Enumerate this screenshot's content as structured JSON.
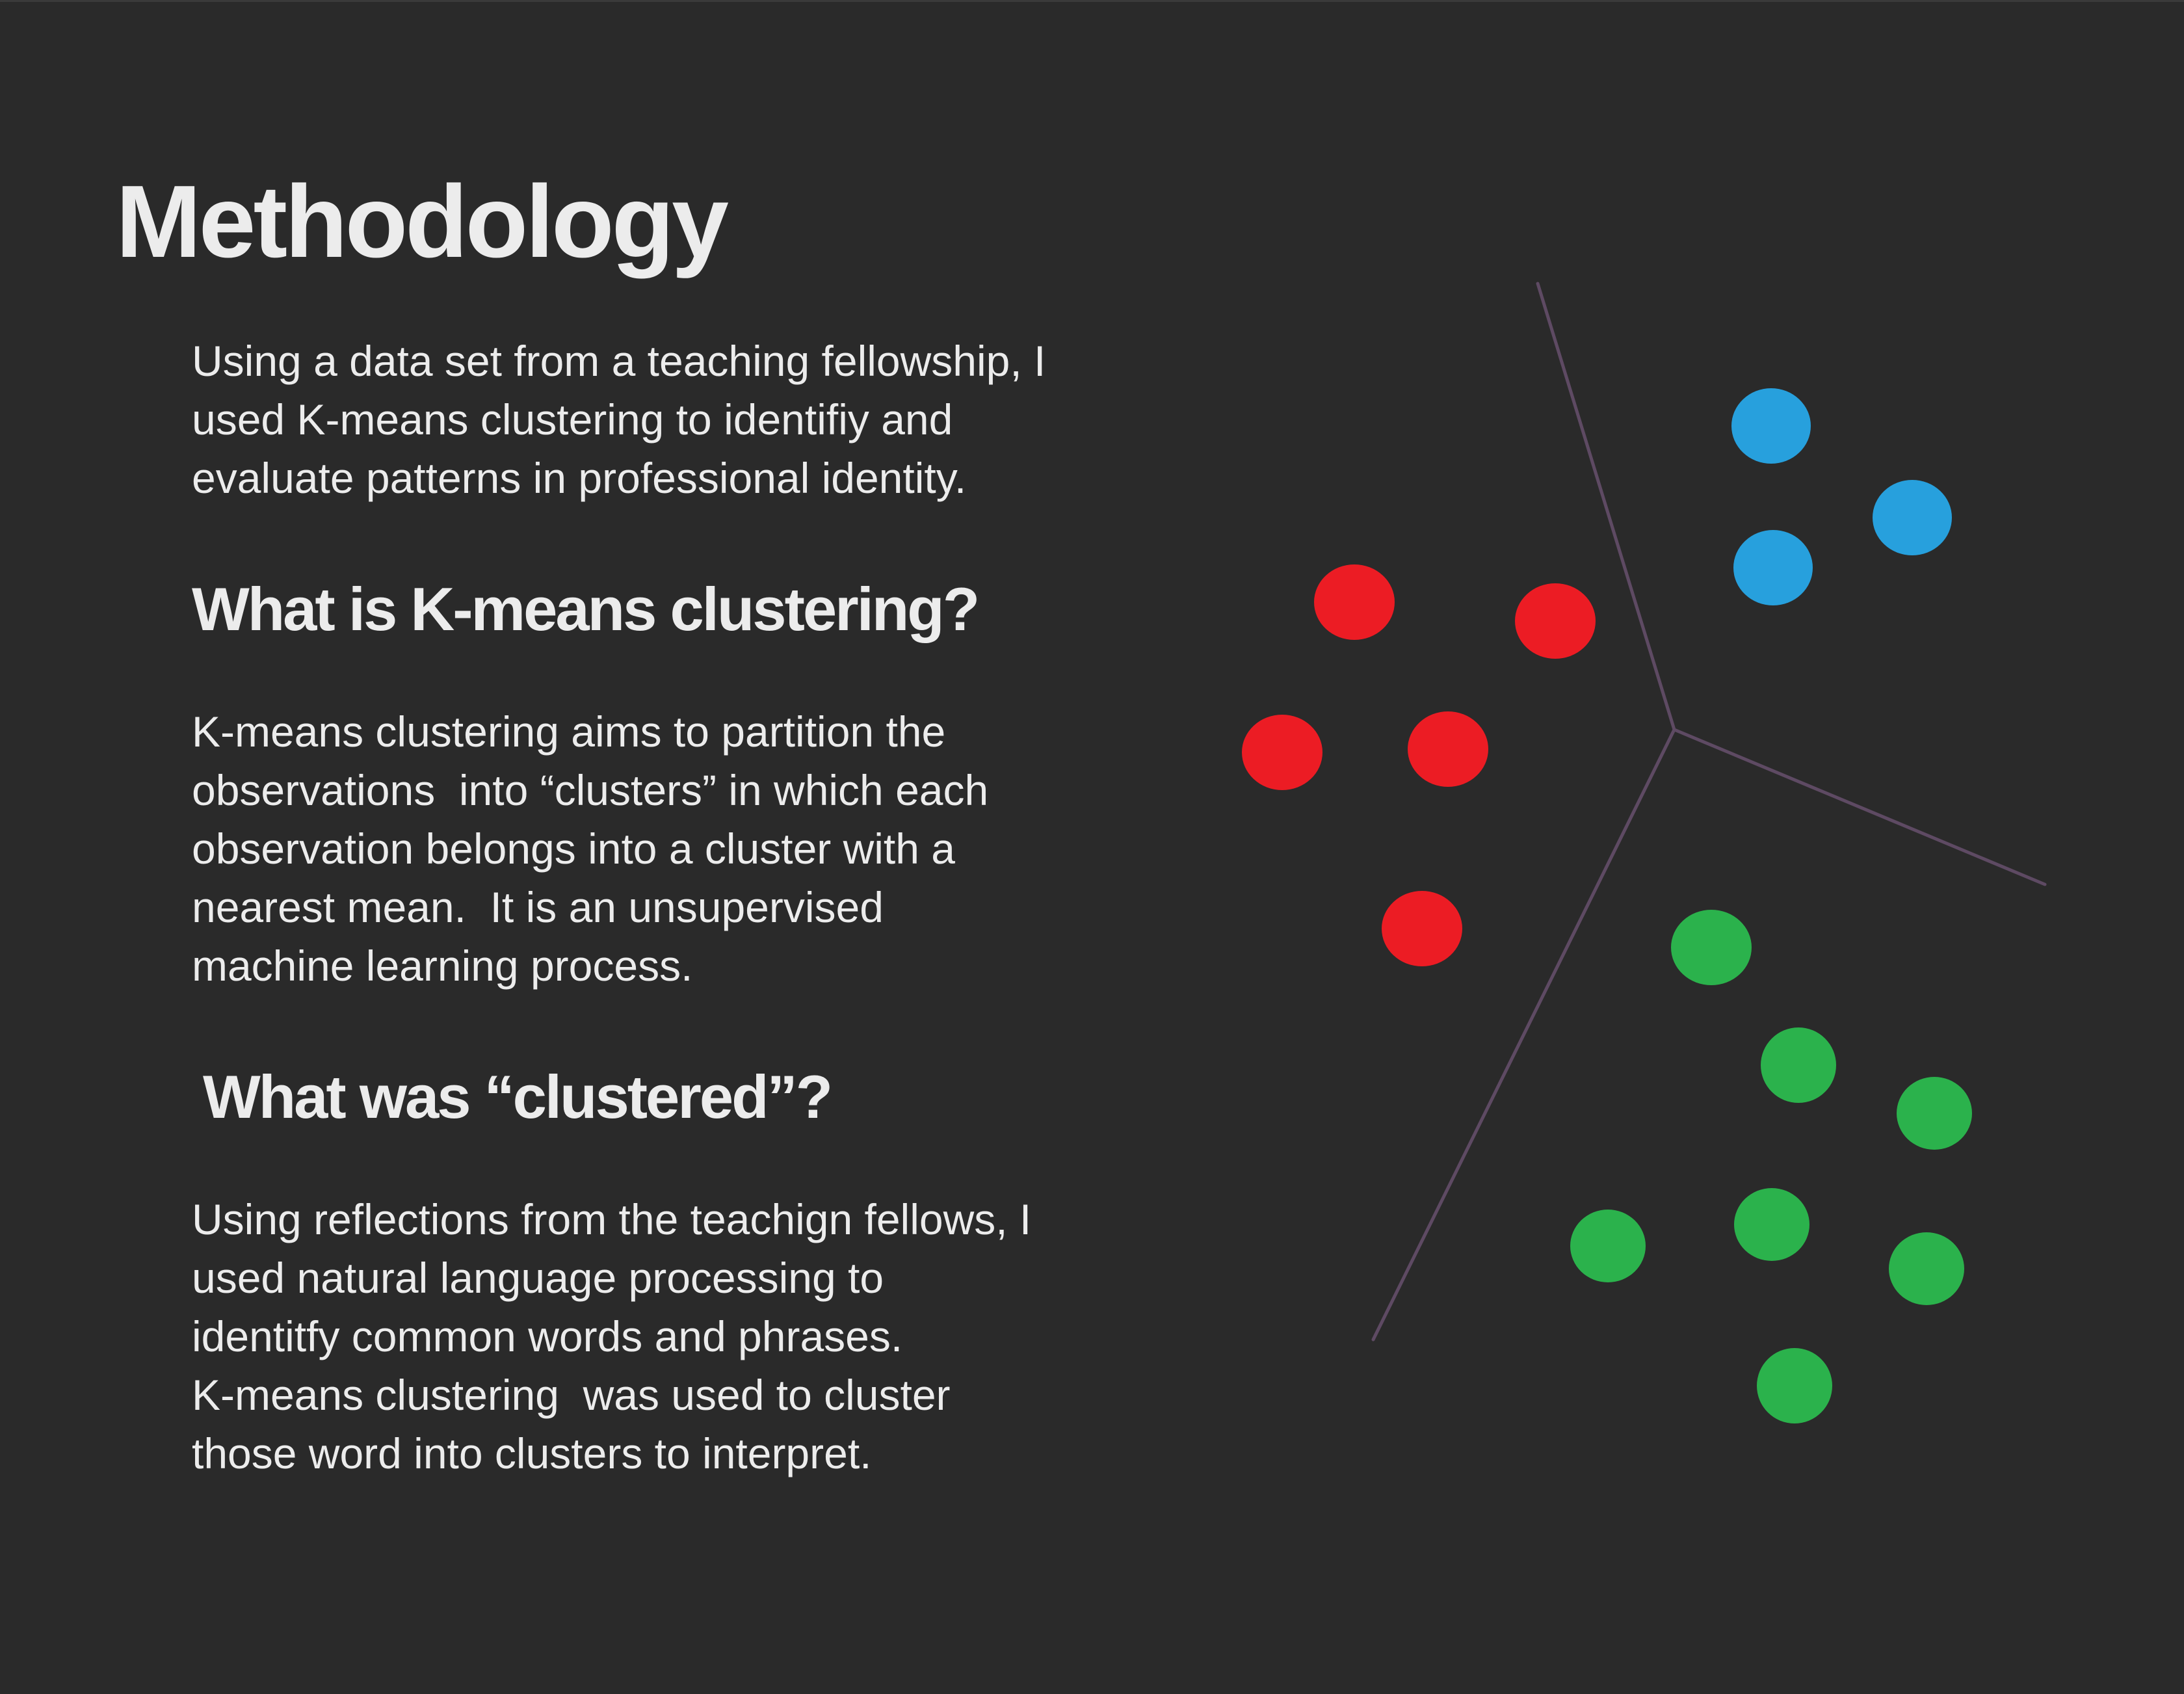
{
  "title": "Methodology",
  "intro_lines": [
    "Using a data set from a teaching fellowship, I",
    "used K-means clustering to identifiy and",
    "evaluate patterns in professional identity."
  ],
  "section1": {
    "heading": "What is K-means clustering?",
    "lines": [
      "K-means clustering aims to partition the",
      "observations  into “clusters” in which each",
      "observation belongs into a cluster with a",
      "nearest mean.  It is an unsupervised",
      "machine learning process."
    ]
  },
  "section2": {
    "heading": "What was “clustered”?",
    "lines": [
      "Using reflections from the teachign fellows, I",
      "used natural language processing to",
      "identitfy common words and phrases.",
      "K-means clustering  was used to cluster",
      "those word into clusters to interpret."
    ]
  },
  "colors": {
    "background": "#2a2a2a",
    "text": "#ececec",
    "boundary": "#5e4a63",
    "cluster_blue": "#27a0dd",
    "cluster_red": "#ec1c24",
    "cluster_green": "#2bb24c"
  }
}
